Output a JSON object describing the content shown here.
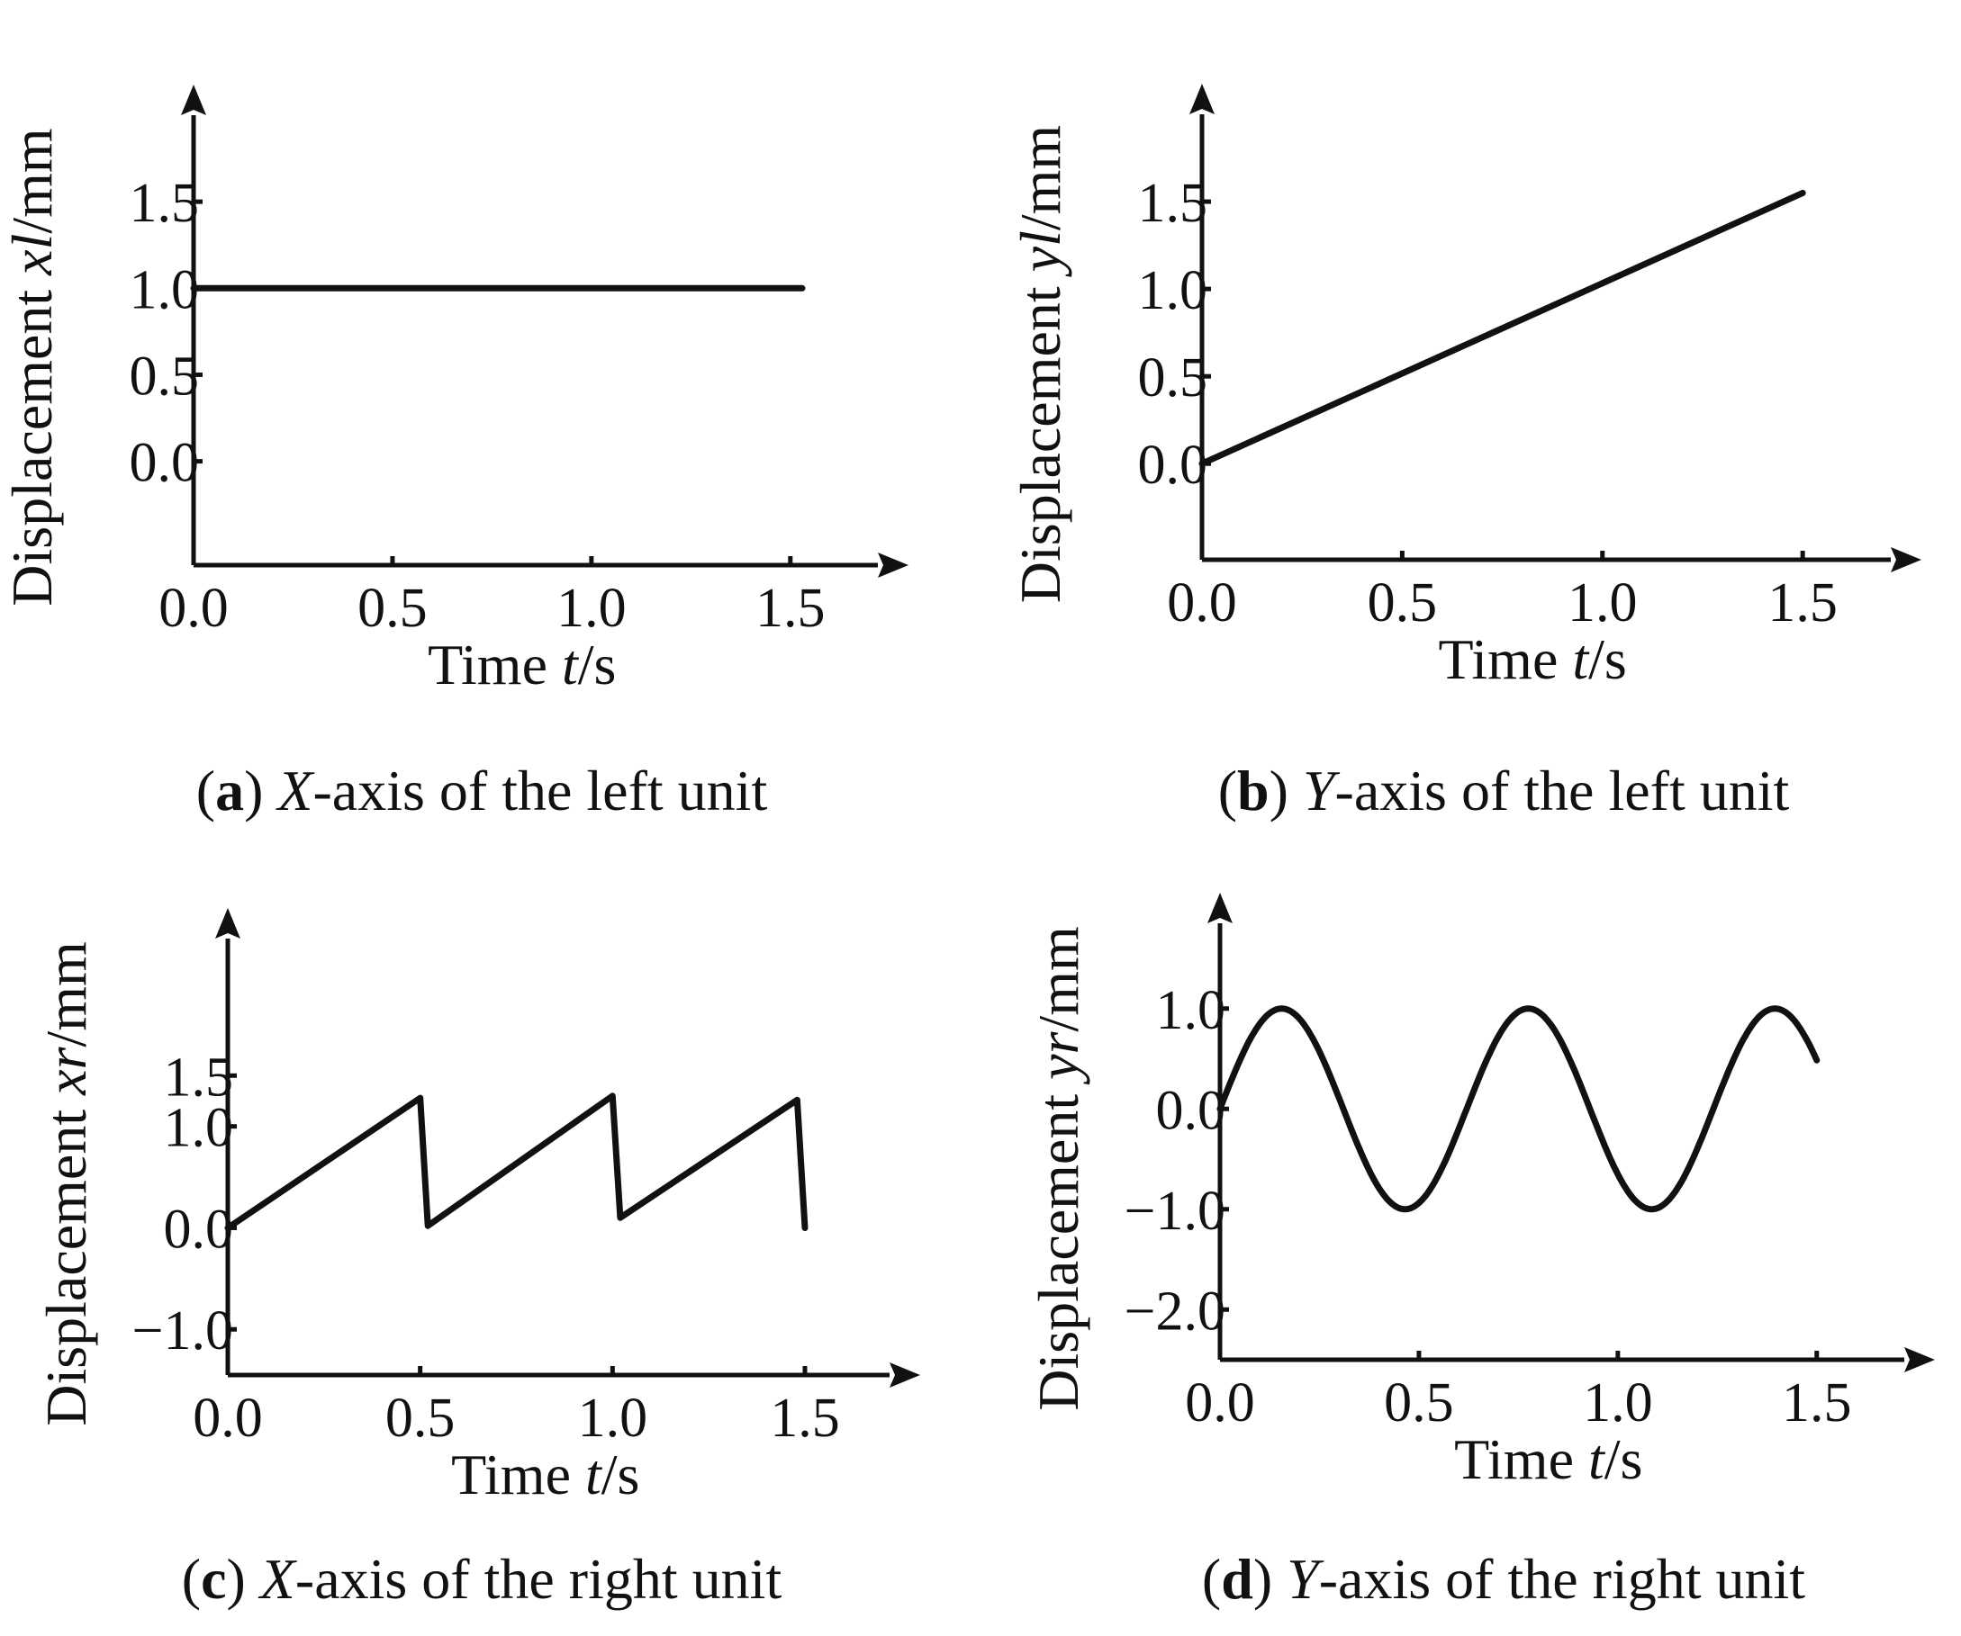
{
  "figure": {
    "captions": [
      {
        "letter": "a",
        "axis": "X",
        "text": "-axis of the left unit"
      },
      {
        "letter": "b",
        "axis": "Y",
        "text": "-axis of the left unit"
      },
      {
        "letter": "c",
        "axis": "X",
        "text": "-axis of the right unit"
      },
      {
        "letter": "d",
        "axis": "Y",
        "text": "-axis of the right unit"
      }
    ]
  },
  "colors": {
    "line": "#111111",
    "background": "#ffffff"
  },
  "chart_data": [
    {
      "type": "line",
      "panel": "a",
      "title": "X-axis of the left unit",
      "xlabel": "Time t/s",
      "xlabel_parts": [
        "Time ",
        "t",
        "/s"
      ],
      "ylabel": "Displacement xl/mm",
      "ylabel_parts": [
        "Displacement ",
        "xl",
        "/mm"
      ],
      "xticks": [
        "0.0",
        "0.5",
        "1.0",
        "1.5"
      ],
      "xtick_values": [
        0,
        0.5,
        1.0,
        1.5
      ],
      "yticks": [
        "0.0",
        "0.5",
        "1.0",
        "1.5"
      ],
      "ytick_values": [
        0,
        0.5,
        1.0,
        1.5
      ],
      "xlim": [
        0,
        1.72
      ],
      "ylim": [
        -0.6,
        2.0
      ],
      "grid": false,
      "series": [
        {
          "name": "xl",
          "x": [
            0,
            1.53
          ],
          "y": [
            1.0,
            1.0
          ]
        }
      ]
    },
    {
      "type": "line",
      "panel": "b",
      "title": "Y-axis of the left unit",
      "xlabel": "Time t/s",
      "xlabel_parts": [
        "Time ",
        "t",
        "/s"
      ],
      "ylabel": "Displacement yl/mm",
      "ylabel_parts": [
        "Displacement ",
        "yl",
        "/mm"
      ],
      "xticks": [
        "0.0",
        "0.5",
        "1.0",
        "1.5"
      ],
      "xtick_values": [
        0,
        0.5,
        1.0,
        1.5
      ],
      "yticks": [
        "0.0",
        "0.5",
        "1.0",
        "1.5"
      ],
      "ytick_values": [
        0,
        0.5,
        1.0,
        1.5
      ],
      "xlim": [
        0,
        1.72
      ],
      "ylim": [
        -0.55,
        2.0
      ],
      "grid": false,
      "series": [
        {
          "name": "yl",
          "x": [
            0,
            1.5
          ],
          "y": [
            0.0,
            1.55
          ]
        }
      ]
    },
    {
      "type": "line",
      "panel": "c",
      "title": "X-axis of the right unit",
      "xlabel": "Time t/s",
      "xlabel_parts": [
        "Time ",
        "t",
        "/s"
      ],
      "ylabel": "Displacement xr/mm",
      "ylabel_parts": [
        "Displacement ",
        "xr",
        "/mm"
      ],
      "xticks": [
        "0.0",
        "0.5",
        "1.0",
        "1.5"
      ],
      "xtick_values": [
        0,
        0.5,
        1.0,
        1.5
      ],
      "yticks": [
        "−1.0",
        "0.0",
        "1.0",
        "1.5"
      ],
      "ytick_values": [
        -1.0,
        0,
        1.0,
        1.5
      ],
      "xlim": [
        0,
        1.72
      ],
      "ylim": [
        -1.45,
        2.85
      ],
      "grid": false,
      "series": [
        {
          "name": "xr",
          "x": [
            0,
            0.5,
            0.52,
            1.0,
            1.02,
            1.48,
            1.5
          ],
          "y": [
            0,
            1.28,
            0.02,
            1.3,
            0.1,
            1.26,
            0.0
          ]
        }
      ]
    },
    {
      "type": "line",
      "panel": "d",
      "title": "Y-axis of the right unit",
      "xlabel": "Time t/s",
      "xlabel_parts": [
        "Time ",
        "t",
        "/s"
      ],
      "ylabel": "Displacement yr/mm",
      "ylabel_parts": [
        "Displacement ",
        "yr",
        "/mm"
      ],
      "xticks": [
        "0.0",
        "0.5",
        "1.0",
        "1.5"
      ],
      "xtick_values": [
        0,
        0.5,
        1.0,
        1.5
      ],
      "yticks": [
        "−2.0",
        "−1.0",
        "0.0",
        "1.0"
      ],
      "ytick_values": [
        -2.0,
        -1.0,
        0,
        1.0
      ],
      "xlim": [
        0,
        1.72
      ],
      "ylim": [
        -2.5,
        1.85
      ],
      "grid": false,
      "series": [
        {
          "name": "yr",
          "function": "sine",
          "amplitude": 1.0,
          "period": 0.62,
          "x": [
            0,
            1.5
          ]
        }
      ]
    }
  ]
}
